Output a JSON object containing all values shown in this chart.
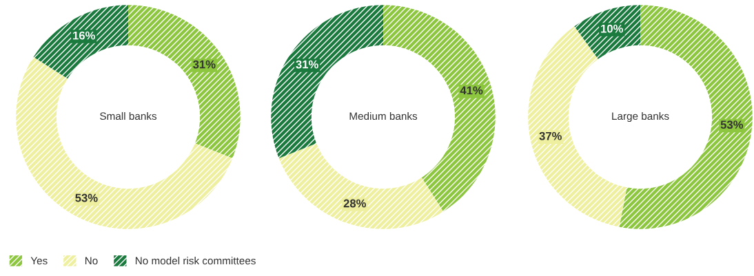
{
  "chart_data": [
    {
      "type": "donut",
      "title": "Small banks",
      "categories": [
        "Yes",
        "No",
        "No model risk committees"
      ],
      "values": [
        31,
        53,
        16
      ],
      "value_labels": [
        "31%",
        "53%",
        "16%"
      ],
      "colors": [
        "#8dc63f",
        "#eef0a0",
        "#1b7a3e"
      ],
      "legend": "bottom left"
    },
    {
      "type": "donut",
      "title": "Medium banks",
      "categories": [
        null,
        null,
        null
      ],
      "values": [
        41,
        28,
        31
      ],
      "value_labels": [
        "41%",
        "28%",
        "31%"
      ],
      "colors": [
        "#8dc63f",
        "#eef0a0",
        "#1b7a3e"
      ]
    },
    {
      "type": "donut",
      "title": "Large banks",
      "categories": [
        null,
        null,
        null
      ],
      "values": [
        53,
        37,
        10
      ],
      "value_labels": [
        "53%",
        "37%",
        "10%"
      ],
      "colors": [
        "#8dc63f",
        "#eef0a0",
        "#1b7a3e"
      ]
    }
  ]
}
